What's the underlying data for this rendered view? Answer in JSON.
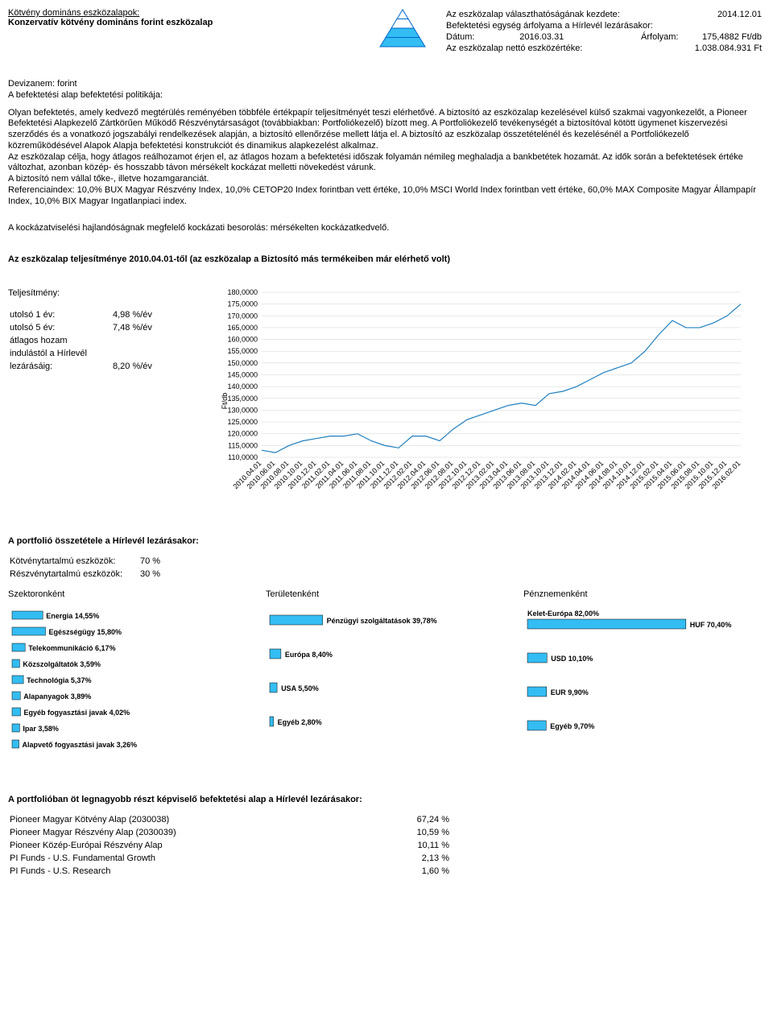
{
  "header": {
    "section_title": "Kötvény domináns eszközalapok:",
    "fund_name": "Konzervatív kötvény domináns forint eszközalap",
    "start_label": "Az eszközalap választhatóságának kezdete:",
    "start_date": "2014.12.01",
    "nav_label": "Befektetési egység árfolyama a Hírlevél lezárásakor:",
    "date_label": "Dátum:",
    "date_value": "2016.03.31",
    "price_label": "Árfolyam:",
    "price_value": "175,4882",
    "price_unit": "Ft/db",
    "asset_label": "Az eszközalap nettó eszközértéke:",
    "asset_value": "1.038.084.931",
    "asset_unit": "Ft"
  },
  "pyramid": {
    "stroke": "#0066cc",
    "fills": [
      "#33bdf2",
      "#33bdf2",
      "#ffffff",
      "#ffffff"
    ]
  },
  "policy": {
    "currency_line": "Devizanem: forint",
    "policy_label": "A befektetési alap befektetési politikája:",
    "body_text": "Olyan befektetés, amely kedvező megtérülés reményében többféle értékpapír teljesítményét teszi elérhetővé. A biztosító az eszközalap kezelésével külső szakmai vagyonkezelőt, a Pioneer Befektetési Alapkezelő Zártkörűen Működő Részvénytársaságot (továbbiakban: Portfoliókezelő) bízott meg. A Portfoliókezelő tevékenységét a biztosítóval kötött ügymenet kiszervezési szerződés és a vonatkozó jogszabályi rendelkezések alapján, a biztosító ellenőrzése mellett látja el. A biztosító az eszközalap összetételénél és kezelésénél a Portfoliókezelő közreműködésével Alapok Alapja befektetési konstrukciót és dinamikus alapkezelést alkalmaz.",
    "body_text2": "Az eszközalap célja, hogy átlagos reálhozamot érjen el, az átlagos hozam a befektetési időszak folyamán némileg meghaladja a bankbetétek hozamát. Az idők során a befektetések értéke változhat, azonban közép- és hosszabb távon mérsékelt kockázat melletti növekedést várunk.",
    "guarantee": "A biztosító nem vállal tőke-, illetve hozamgaranciát.",
    "reference": "Referenciaindex: 10,0% BUX Magyar Részvény Index, 10,0% CETOP20 Index forintban vett értéke, 10,0% MSCI World Index forintban vett értéke, 60,0% MAX Composite Magyar Állampapír Index, 10,0% BIX Magyar Ingatlanpiaci index.",
    "risk_line": "A kockázatviselési hajlandóságnak megfelelő kockázati besorolás: mérsékelten kockázatkedvelő."
  },
  "performance": {
    "title": "Az eszközalap teljesítménye 2010.04.01-től (az eszközalap a Biztosító más termékeiben már elérhető volt)",
    "perf_label": "Teljesítmény:",
    "rows": [
      {
        "label": "utolsó 1 év:",
        "value": "4,98 %/év"
      },
      {
        "label": "utolsó 5 év:",
        "value": "7,48 %/év"
      }
    ],
    "avg_label1": "átlagos hozam",
    "avg_label2": "indulástól a Hírlevél",
    "avg_label3": "lezárásáig:",
    "avg_value": "8,20 %/év"
  },
  "line_chart": {
    "y_label": "Ft/db",
    "ylim": [
      110,
      180
    ],
    "ytick_step": 5,
    "line_color": "#1f7fbf",
    "line_width": 1.2,
    "grid_color": "#d0d0d0",
    "x_labels": [
      "2010.04.01",
      "2010.06.01",
      "2010.08.01",
      "2010.10.01",
      "2010.12.01",
      "2011.02.01",
      "2011.04.01",
      "2011.06.01",
      "2011.08.01",
      "2011.10.01",
      "2011.12.01",
      "2012.02.01",
      "2012.04.01",
      "2012.06.01",
      "2012.08.01",
      "2012.10.01",
      "2012.12.01",
      "2013.02.01",
      "2013.04.01",
      "2013.06.01",
      "2013.08.01",
      "2013.10.01",
      "2013.12.01",
      "2014.02.01",
      "2014.04.01",
      "2014.06.01",
      "2014.08.01",
      "2014.10.01",
      "2014.12.01",
      "2015.02.01",
      "2015.04.01",
      "2015.06.01",
      "2015.08.01",
      "2015.10.01",
      "2015.12.01",
      "2016.02.01"
    ],
    "values": [
      113,
      112,
      115,
      117,
      118,
      119,
      119,
      120,
      117,
      115,
      114,
      119,
      119,
      117,
      122,
      126,
      128,
      130,
      132,
      133,
      132,
      137,
      138,
      140,
      143,
      146,
      148,
      150,
      155,
      162,
      168,
      165,
      165,
      167,
      170,
      175
    ]
  },
  "composition": {
    "title": "A portfolió összetétele a Hírlevél lezárásakor:",
    "rows": [
      {
        "label": "Kötvénytartalmú eszközök:",
        "value": "70 %"
      },
      {
        "label": "Részvénytartalmú eszközök:",
        "value": "30 %"
      }
    ]
  },
  "breakdown": {
    "sector": {
      "title": "Szektoronként",
      "bar_color": "#33bdf2",
      "items": [
        {
          "label": "Energia 14,55%",
          "v": 14.55
        },
        {
          "label": "Egészségügy 15,80%",
          "v": 15.8
        },
        {
          "label": "Telekommunikáció 6,17%",
          "v": 6.17
        },
        {
          "label": "Közszolgáltatók 3,59%",
          "v": 3.59
        },
        {
          "label": "Technológia 5,37%",
          "v": 5.37
        },
        {
          "label": "Alapanyagok 3,89%",
          "v": 3.89
        },
        {
          "label": "Egyéb fogyasztási javak 4,02%",
          "v": 4.02
        },
        {
          "label": "Ipar 3,58%",
          "v": 3.58
        },
        {
          "label": "Alapvető fogyasztási javak 3,26%",
          "v": 3.26
        }
      ]
    },
    "region": {
      "title": "Területenként",
      "bar_color": "#33bdf2",
      "items": [
        {
          "label": "Pénzügyi szolgáltatások 39,78%",
          "v": 39.78
        },
        {
          "label": "Európa 8,40%",
          "v": 8.4
        },
        {
          "label": "USA 5,50%",
          "v": 5.5
        },
        {
          "label": "Egyéb 2,80%",
          "v": 2.8
        }
      ]
    },
    "currency": {
      "title": "Pénznemenként",
      "bar_color": "#33bdf2",
      "items": [
        {
          "label_top": "Kelet-Európa 82,00%",
          "label_right": "HUF 70,40%",
          "v": 82.0
        },
        {
          "label_right": "USD 10,10%",
          "v": 10.1
        },
        {
          "label_right": "EUR 9,90%",
          "v": 9.9
        },
        {
          "label_right": "Egyéb 9,70%",
          "v": 9.7
        }
      ]
    }
  },
  "holdings": {
    "title": "A portfolióban öt legnagyobb részt képviselő befektetési alap a Hírlevél lezárásakor:",
    "rows": [
      {
        "label": "Pioneer Magyar Kötvény Alap (2030038)",
        "value": "67,24 %"
      },
      {
        "label": "Pioneer Magyar Részvény Alap (2030039)",
        "value": "10,59 %"
      },
      {
        "label": "Pioneer Közép-Európai Részvény Alap",
        "value": "10,11 %"
      },
      {
        "label": "PI Funds - U.S. Fundamental Growth",
        "value": "2,13 %"
      },
      {
        "label": "PI Funds - U.S. Research",
        "value": "1,60 %"
      }
    ]
  }
}
